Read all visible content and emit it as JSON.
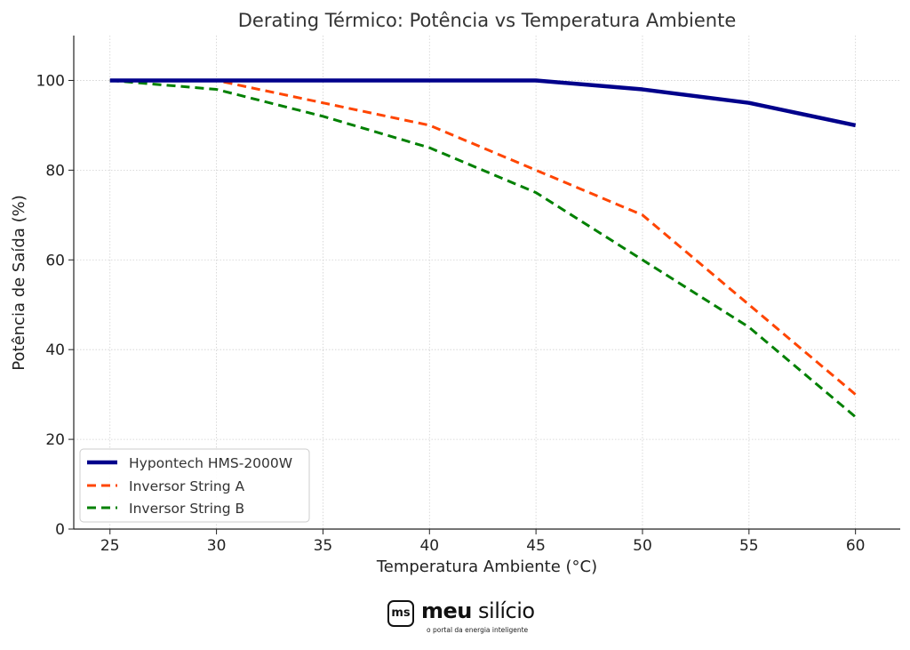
{
  "chart_data": {
    "type": "line",
    "title": "Derating Térmico: Potência vs Temperatura Ambiente",
    "xlabel": "Temperatura Ambiente (°C)",
    "ylabel": "Potência de Saída (%)",
    "x": [
      25,
      30,
      35,
      40,
      45,
      50,
      55,
      60
    ],
    "xlim": [
      23.3,
      62.1
    ],
    "ylim": [
      0,
      110
    ],
    "xticks": [
      25,
      30,
      35,
      40,
      45,
      50,
      55,
      60
    ],
    "yticks": [
      0,
      20,
      40,
      60,
      80,
      100
    ],
    "grid": true,
    "legend_position": "bottom-left",
    "series": [
      {
        "name": "Hypontech HMS-2000W",
        "values": [
          100,
          100,
          100,
          100,
          100,
          98,
          95,
          90
        ],
        "color": "#00008b",
        "style": "solid"
      },
      {
        "name": "Inversor String A",
        "values": [
          100,
          100,
          95,
          90,
          80,
          70,
          50,
          30
        ],
        "color": "#ff4500",
        "style": "dashed"
      },
      {
        "name": "Inversor String B",
        "values": [
          100,
          98,
          92,
          85,
          75,
          60,
          45,
          25
        ],
        "color": "#008000",
        "style": "dashed"
      }
    ]
  },
  "logo": {
    "badge": "ms",
    "word_bold": "meu",
    "word_light": "silício",
    "tagline": "o portal da energia inteligente"
  }
}
